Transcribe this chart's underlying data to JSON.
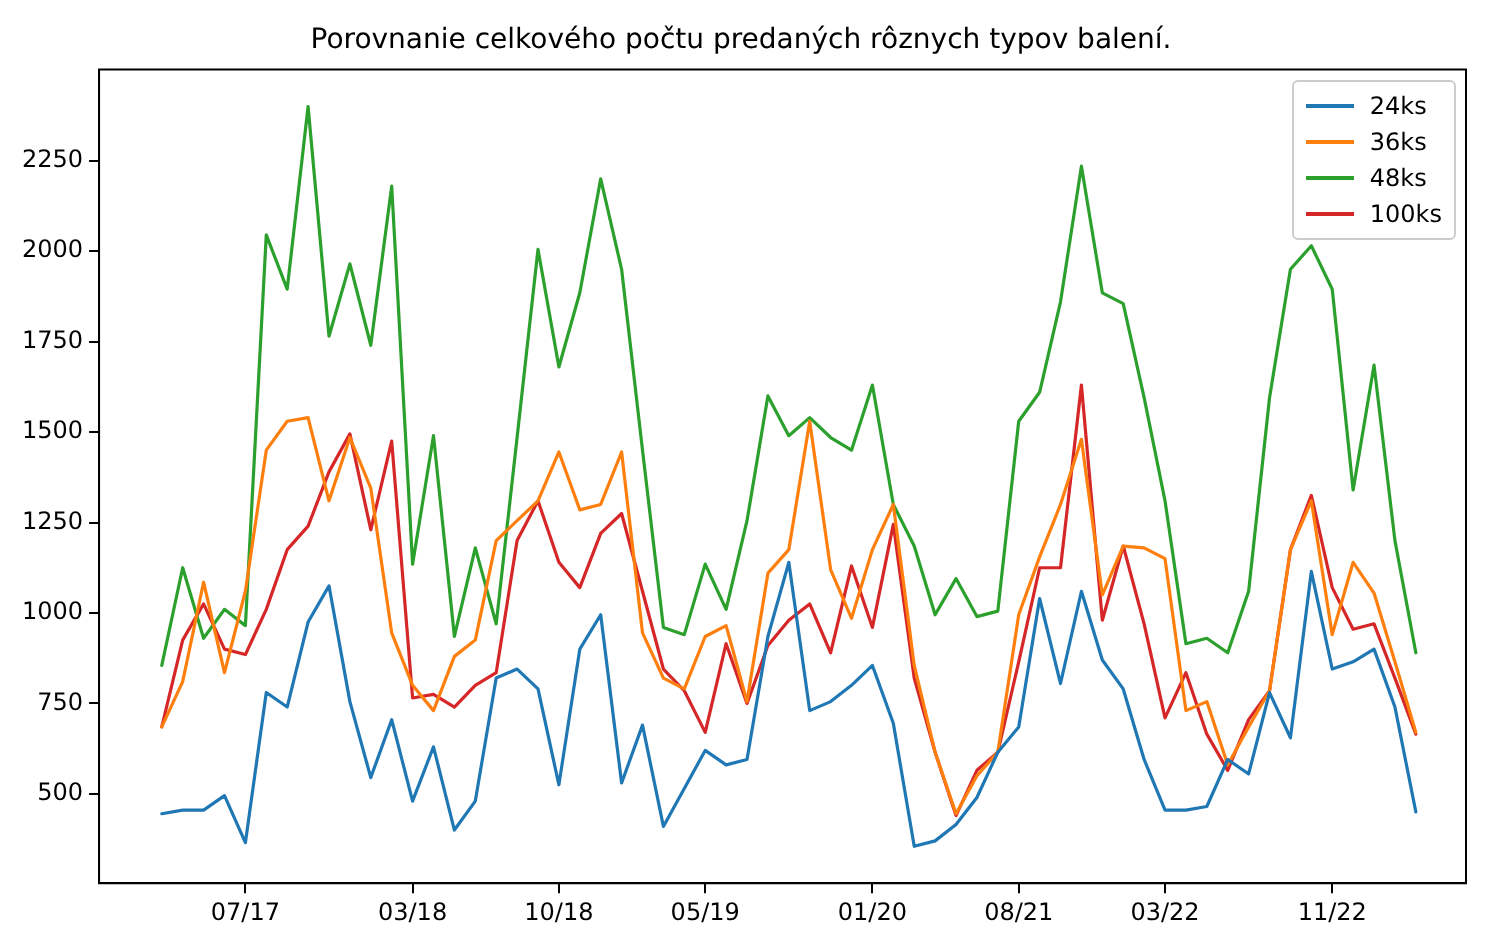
{
  "chart_data": {
    "type": "line",
    "title": "Porovnanie celkového počtu predaných rôznych typov balení.",
    "categories": [
      null,
      null,
      null,
      null,
      "07/17",
      null,
      null,
      null,
      null,
      null,
      null,
      null,
      "03/18",
      null,
      null,
      null,
      null,
      null,
      null,
      "10/18",
      null,
      null,
      null,
      null,
      null,
      null,
      "05/19",
      null,
      null,
      null,
      null,
      null,
      null,
      null,
      "01/20",
      null,
      null,
      null,
      null,
      null,
      null,
      "08/21",
      null,
      null,
      null,
      null,
      null,
      null,
      "03/22",
      null,
      null,
      null,
      null,
      null,
      null,
      null,
      "11/22",
      null,
      null,
      null,
      null
    ],
    "series": [
      {
        "name": "24ks",
        "color": "#1f77b4",
        "values": [
          445,
          455,
          455,
          495,
          365,
          780,
          740,
          975,
          1075,
          755,
          545,
          705,
          480,
          630,
          400,
          480,
          820,
          845,
          790,
          525,
          900,
          995,
          530,
          690,
          410,
          515,
          620,
          580,
          595,
          935,
          1140,
          730,
          755,
          800,
          855,
          695,
          355,
          370,
          415,
          490,
          615,
          685,
          1040,
          805,
          1060,
          870,
          790,
          595,
          455,
          455,
          465,
          595,
          555,
          780,
          655,
          1115,
          845,
          865,
          900,
          740,
          450
        ]
      },
      {
        "name": "36ks",
        "color": "#ff7f0e",
        "values": [
          685,
          810,
          1085,
          835,
          1060,
          1450,
          1530,
          1540,
          1310,
          1485,
          1345,
          945,
          800,
          730,
          880,
          925,
          1200,
          1255,
          1310,
          1445,
          1285,
          1300,
          1445,
          945,
          820,
          790,
          935,
          965,
          755,
          1110,
          1175,
          1530,
          1120,
          985,
          1175,
          1300,
          855,
          615,
          445,
          550,
          615,
          995,
          1155,
          1300,
          1480,
          1050,
          1185,
          1180,
          1150,
          730,
          755,
          580,
          685,
          785,
          1175,
          1310,
          940,
          1140,
          1055,
          865,
          670
        ]
      },
      {
        "name": "48ks",
        "color": "#2ca02c",
        "values": [
          855,
          1125,
          930,
          1010,
          965,
          2045,
          1895,
          2400,
          1765,
          1965,
          1740,
          2180,
          1135,
          1490,
          935,
          1180,
          970,
          1485,
          2005,
          1680,
          1885,
          2200,
          1950,
          1450,
          960,
          940,
          1135,
          1010,
          1255,
          1600,
          1490,
          1540,
          1485,
          1450,
          1630,
          1300,
          1185,
          995,
          1095,
          990,
          1005,
          1530,
          1610,
          1860,
          2235,
          1885,
          1855,
          1595,
          1310,
          915,
          930,
          890,
          1060,
          1595,
          1950,
          2015,
          1895,
          1340,
          1685,
          1200,
          890
        ]
      },
      {
        "name": "100ks",
        "color": "#d62728",
        "values": [
          685,
          925,
          1025,
          900,
          885,
          1010,
          1175,
          1240,
          1390,
          1495,
          1230,
          1475,
          765,
          775,
          740,
          800,
          835,
          1200,
          1310,
          1140,
          1070,
          1220,
          1275,
          1060,
          845,
          785,
          670,
          915,
          750,
          910,
          980,
          1025,
          890,
          1130,
          960,
          1245,
          820,
          615,
          440,
          565,
          615,
          865,
          1125,
          1125,
          1630,
          980,
          1185,
          970,
          710,
          835,
          665,
          565,
          705,
          785,
          1175,
          1325,
          1070,
          955,
          970,
          820,
          665
        ]
      }
    ],
    "ylim": [
      253,
      2502
    ],
    "yticks": [
      500,
      750,
      1000,
      1250,
      1500,
      1750,
      2000,
      2250
    ],
    "grid": false,
    "legend": "top right",
    "marker": "none",
    "line_style": "solid"
  }
}
